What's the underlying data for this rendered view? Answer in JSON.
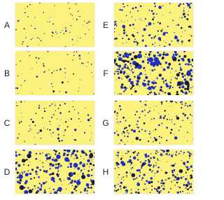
{
  "panels": [
    {
      "label": "A"
    },
    {
      "label": "B"
    },
    {
      "label": "C"
    },
    {
      "label": "D"
    },
    {
      "label": "E"
    },
    {
      "label": "F"
    },
    {
      "label": "G"
    },
    {
      "label": "H"
    }
  ]
}
